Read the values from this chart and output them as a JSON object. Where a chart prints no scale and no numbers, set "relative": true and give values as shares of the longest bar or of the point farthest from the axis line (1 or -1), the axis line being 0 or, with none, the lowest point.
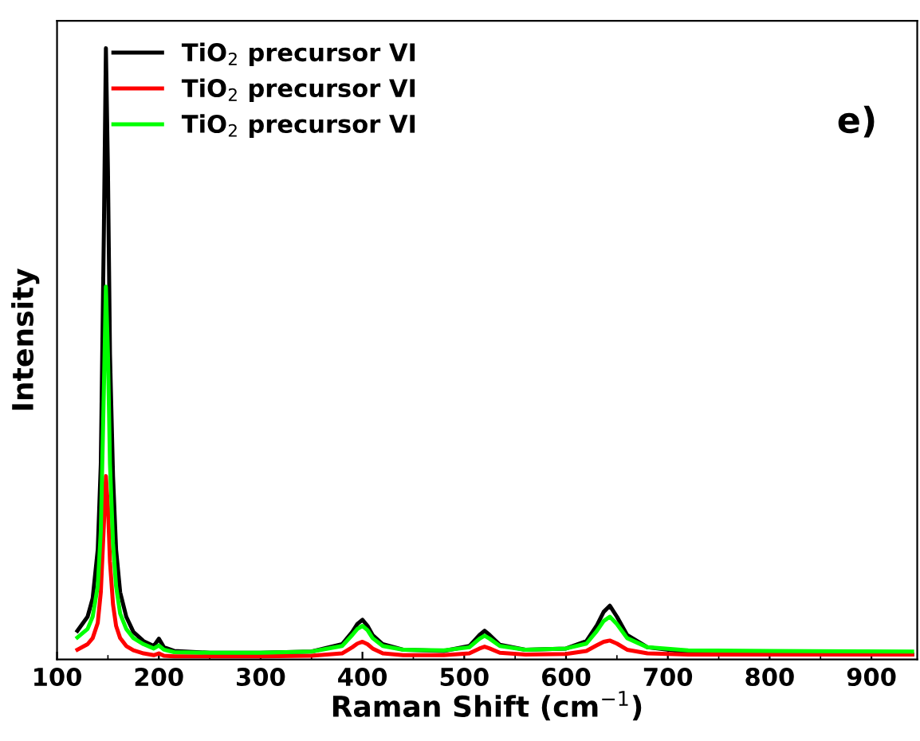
{
  "chart_data": {
    "type": "line",
    "xlabel": "Raman Shift (cm$^{−1}$)",
    "ylabel": "Intensity",
    "relative": true,
    "xlim": [
      100,
      945
    ],
    "xticks": [
      100,
      200,
      300,
      400,
      500,
      600,
      700,
      800,
      900
    ],
    "tick_labels": "x",
    "legend": "top left",
    "grid": false,
    "marker": "none",
    "line_style": "solid",
    "annotations": [
      "e)"
    ],
    "x": [
      120,
      130,
      135,
      140,
      143,
      146,
      148,
      150,
      152,
      155,
      158,
      162,
      168,
      175,
      185,
      195,
      200,
      205,
      215,
      250,
      300,
      350,
      380,
      390,
      395,
      400,
      405,
      410,
      420,
      440,
      480,
      505,
      515,
      520,
      525,
      535,
      560,
      600,
      620,
      630,
      637,
      643,
      650,
      660,
      680,
      720,
      800,
      940
    ],
    "series": [
      {
        "name": "TiO$_{2}$ precursor VI",
        "color": "#000000",
        "values": [
          0.047,
          0.07,
          0.1,
          0.18,
          0.32,
          0.7,
          1.0,
          0.8,
          0.5,
          0.3,
          0.18,
          0.11,
          0.07,
          0.045,
          0.03,
          0.022,
          0.034,
          0.02,
          0.014,
          0.011,
          0.011,
          0.013,
          0.025,
          0.045,
          0.058,
          0.065,
          0.055,
          0.04,
          0.025,
          0.016,
          0.014,
          0.022,
          0.04,
          0.047,
          0.04,
          0.024,
          0.016,
          0.018,
          0.03,
          0.055,
          0.078,
          0.088,
          0.07,
          0.04,
          0.02,
          0.012,
          0.011,
          0.008
        ]
      },
      {
        "name": "TiO$_{2}$ precursor VI",
        "color": "#ff0000",
        "values": [
          0.016,
          0.025,
          0.035,
          0.06,
          0.11,
          0.22,
          0.3,
          0.25,
          0.16,
          0.09,
          0.055,
          0.035,
          0.022,
          0.015,
          0.01,
          0.007,
          0.01,
          0.006,
          0.005,
          0.005,
          0.005,
          0.006,
          0.01,
          0.02,
          0.026,
          0.029,
          0.025,
          0.018,
          0.01,
          0.007,
          0.007,
          0.01,
          0.018,
          0.021,
          0.018,
          0.011,
          0.008,
          0.009,
          0.014,
          0.023,
          0.029,
          0.031,
          0.026,
          0.016,
          0.01,
          0.008,
          0.008,
          0.008
        ]
      },
      {
        "name": "TiO$_{2}$ precursor VI",
        "color": "#00ff00",
        "values": [
          0.036,
          0.05,
          0.07,
          0.12,
          0.21,
          0.44,
          0.61,
          0.5,
          0.32,
          0.19,
          0.12,
          0.075,
          0.05,
          0.035,
          0.025,
          0.018,
          0.023,
          0.016,
          0.012,
          0.011,
          0.011,
          0.013,
          0.022,
          0.04,
          0.05,
          0.055,
          0.048,
          0.035,
          0.022,
          0.016,
          0.015,
          0.02,
          0.034,
          0.039,
          0.034,
          0.022,
          0.016,
          0.018,
          0.026,
          0.046,
          0.063,
          0.07,
          0.058,
          0.035,
          0.02,
          0.015,
          0.014,
          0.013
        ]
      }
    ]
  }
}
